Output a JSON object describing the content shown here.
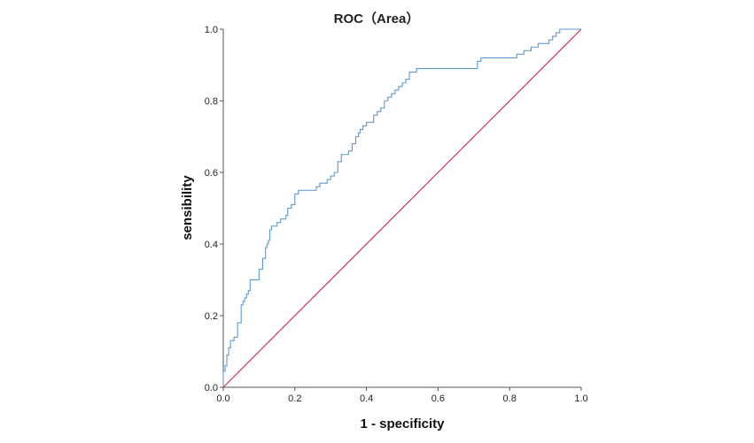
{
  "chart_data": {
    "type": "line",
    "title": "ROC（Area）",
    "xlabel": "1 - specificity",
    "ylabel": "sensibility",
    "xlim": [
      0,
      1
    ],
    "ylim": [
      0,
      1
    ],
    "x_ticks": [
      "0.0",
      "0.2",
      "0.4",
      "0.6",
      "0.8",
      "1.0"
    ],
    "y_ticks": [
      "0.0",
      "0.2",
      "0.4",
      "0.6",
      "0.8",
      "1.0"
    ],
    "grid": false,
    "legend": "none",
    "series": [
      {
        "color": "#5b9bd5",
        "step": true,
        "x": [
          0.0,
          0.0,
          0.005,
          0.01,
          0.015,
          0.02,
          0.03,
          0.04,
          0.05,
          0.055,
          0.06,
          0.065,
          0.07,
          0.075,
          0.085,
          0.1,
          0.11,
          0.118,
          0.122,
          0.126,
          0.13,
          0.135,
          0.14,
          0.15,
          0.16,
          0.175,
          0.18,
          0.19,
          0.2,
          0.21,
          0.215,
          0.225,
          0.26,
          0.27,
          0.29,
          0.3,
          0.31,
          0.32,
          0.33,
          0.34,
          0.35,
          0.36,
          0.37,
          0.378,
          0.382,
          0.39,
          0.4,
          0.42,
          0.43,
          0.44,
          0.45,
          0.46,
          0.47,
          0.48,
          0.49,
          0.5,
          0.51,
          0.52,
          0.54,
          0.55,
          0.56,
          0.58,
          0.6,
          0.62,
          0.66,
          0.69,
          0.71,
          0.72,
          0.74,
          0.78,
          0.82,
          0.84,
          0.86,
          0.88,
          0.91,
          0.92,
          0.93,
          0.94,
          1.0
        ],
        "y": [
          0.0,
          0.045,
          0.06,
          0.09,
          0.11,
          0.13,
          0.14,
          0.18,
          0.23,
          0.24,
          0.25,
          0.26,
          0.27,
          0.3,
          0.3,
          0.33,
          0.36,
          0.39,
          0.4,
          0.41,
          0.44,
          0.45,
          0.45,
          0.46,
          0.47,
          0.48,
          0.5,
          0.51,
          0.54,
          0.55,
          0.55,
          0.55,
          0.56,
          0.57,
          0.58,
          0.59,
          0.6,
          0.63,
          0.65,
          0.65,
          0.66,
          0.68,
          0.7,
          0.71,
          0.72,
          0.73,
          0.74,
          0.76,
          0.77,
          0.78,
          0.8,
          0.81,
          0.82,
          0.83,
          0.84,
          0.85,
          0.86,
          0.88,
          0.89,
          0.89,
          0.89,
          0.89,
          0.89,
          0.89,
          0.89,
          0.89,
          0.91,
          0.92,
          0.92,
          0.92,
          0.93,
          0.94,
          0.95,
          0.96,
          0.97,
          0.98,
          0.99,
          1.0,
          1.0
        ]
      },
      {
        "color": "#c8264f",
        "step": false,
        "x": [
          0,
          1
        ],
        "y": [
          0,
          1
        ]
      }
    ]
  }
}
